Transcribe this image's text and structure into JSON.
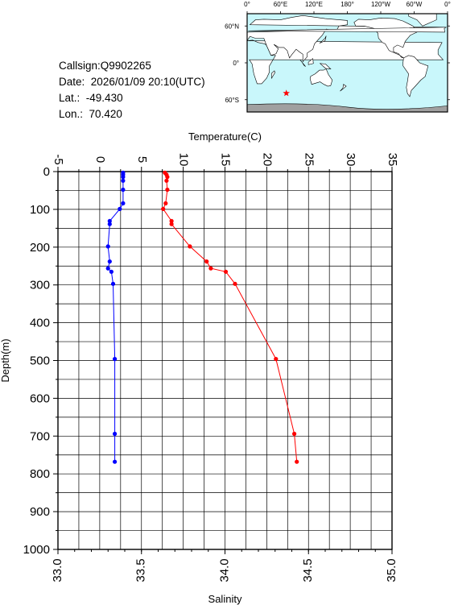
{
  "info": {
    "callsign_label": "Callsign:",
    "callsign": "Q9902265",
    "date_label": "Date:",
    "date": "2026/01/09 20:10(UTC)",
    "lat_label": "Lat.:",
    "lat": "-49.430",
    "lon_label": "Lon.:",
    "lon": "70.420"
  },
  "map": {
    "top_labels": [
      "0°",
      "60°E",
      "120°E",
      "180°",
      "120°W",
      "60°W",
      "0°"
    ],
    "left_labels": [
      "60°N",
      "0°",
      "60°S"
    ],
    "ocean_color": "#c9f7fb",
    "land_color": "#ffffff",
    "ice_color": "#a0a0a0",
    "marker_color": "#ff0000",
    "marker_lon": 70.42,
    "marker_lat": -49.43
  },
  "chart_data": {
    "type": "line",
    "top_axis_label": "Temperature(C)",
    "bottom_axis_label": "Salinity",
    "y_axis_label": "Depth(m)",
    "temperature_ticks": [
      "-5",
      "0",
      "5",
      "10",
      "15",
      "20",
      "25",
      "30",
      "35"
    ],
    "salinity_ticks": [
      "33.0",
      "33.5",
      "34.0",
      "34.5",
      "35.0"
    ],
    "depth_ticks": [
      "0",
      "100",
      "200",
      "300",
      "400",
      "500",
      "600",
      "700",
      "800",
      "900",
      "1000"
    ],
    "temperature_range": [
      -5,
      35
    ],
    "salinity_range": [
      33.0,
      35.0
    ],
    "depth_range": [
      0,
      1000
    ],
    "grid": true,
    "series": [
      {
        "quantity": "salinity",
        "color": "#0000ff",
        "points": [
          [
            33.39,
            3
          ],
          [
            33.39,
            8
          ],
          [
            33.39,
            14
          ],
          [
            33.39,
            24
          ],
          [
            33.39,
            48
          ],
          [
            33.39,
            84
          ],
          [
            33.37,
            99
          ],
          [
            33.31,
            131
          ],
          [
            33.31,
            139
          ],
          [
            33.3,
            198
          ],
          [
            33.31,
            238
          ],
          [
            33.3,
            256
          ],
          [
            33.32,
            265
          ],
          [
            33.33,
            297
          ],
          [
            33.34,
            496
          ],
          [
            33.34,
            694
          ],
          [
            33.34,
            768
          ]
        ]
      },
      {
        "quantity": "temperature",
        "color": "#ff0000",
        "points": [
          [
            7.8,
            3
          ],
          [
            8.0,
            8
          ],
          [
            8.1,
            14
          ],
          [
            8.0,
            24
          ],
          [
            8.1,
            48
          ],
          [
            7.9,
            84
          ],
          [
            7.6,
            99
          ],
          [
            8.6,
            131
          ],
          [
            8.6,
            139
          ],
          [
            10.8,
            198
          ],
          [
            12.8,
            238
          ],
          [
            13.3,
            256
          ],
          [
            15.1,
            265
          ],
          [
            16.2,
            297
          ],
          [
            21.1,
            496
          ],
          [
            23.3,
            694
          ],
          [
            23.6,
            768
          ]
        ]
      }
    ]
  }
}
